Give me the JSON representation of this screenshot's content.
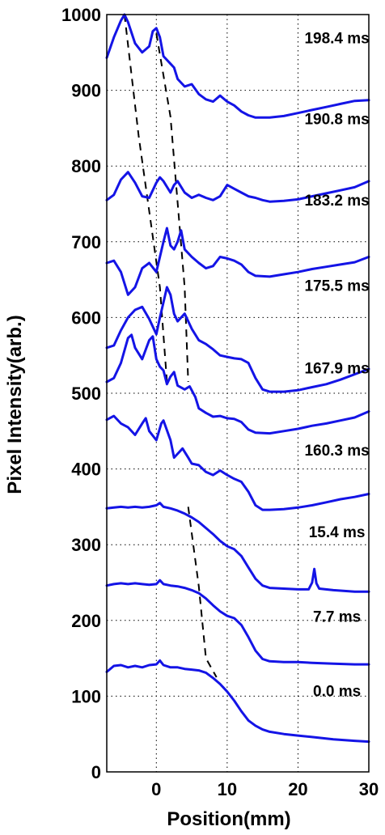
{
  "chart_data": {
    "type": "line",
    "xlabel": "Position(mm)",
    "ylabel": "Pixel Intensity(arb.)",
    "xlim": [
      -7,
      30
    ],
    "ylim": [
      0,
      1000
    ],
    "xticks": [
      0,
      10,
      20,
      30
    ],
    "yticks": [
      0,
      100,
      200,
      300,
      400,
      500,
      600,
      700,
      800,
      900,
      1000
    ],
    "grid": true,
    "line_color": "#1414e6",
    "series": [
      {
        "name": "0.0 ms",
        "label_at": [
          25.5,
          100
        ],
        "values": [
          [
            -7,
            132
          ],
          [
            -6,
            140
          ],
          [
            -5,
            141
          ],
          [
            -4,
            138
          ],
          [
            -3,
            140
          ],
          [
            -2,
            138
          ],
          [
            -1,
            141
          ],
          [
            0,
            142
          ],
          [
            0.5,
            147
          ],
          [
            1,
            141
          ],
          [
            2,
            138
          ],
          [
            3,
            138
          ],
          [
            4,
            136
          ],
          [
            5,
            135
          ],
          [
            6,
            134
          ],
          [
            7,
            131
          ],
          [
            8,
            124
          ],
          [
            9,
            116
          ],
          [
            10,
            106
          ],
          [
            11,
            94
          ],
          [
            12,
            80
          ],
          [
            13,
            68
          ],
          [
            14,
            61
          ],
          [
            15,
            56
          ],
          [
            16,
            53
          ],
          [
            18,
            50
          ],
          [
            20,
            48
          ],
          [
            22,
            46
          ],
          [
            25,
            43
          ],
          [
            28,
            41
          ],
          [
            30,
            40
          ]
        ]
      },
      {
        "name": "7.7 ms",
        "label_at": [
          25.5,
          198
        ],
        "values": [
          [
            -7,
            246
          ],
          [
            -6,
            248
          ],
          [
            -5,
            249
          ],
          [
            -4,
            248
          ],
          [
            -3,
            249
          ],
          [
            -2,
            248
          ],
          [
            -1,
            247
          ],
          [
            0,
            248
          ],
          [
            0.5,
            253
          ],
          [
            1,
            248
          ],
          [
            2,
            246
          ],
          [
            3,
            245
          ],
          [
            4,
            243
          ],
          [
            5,
            240
          ],
          [
            6,
            236
          ],
          [
            7,
            229
          ],
          [
            8,
            220
          ],
          [
            9,
            212
          ],
          [
            10,
            206
          ],
          [
            11,
            203
          ],
          [
            12,
            194
          ],
          [
            13,
            178
          ],
          [
            14,
            160
          ],
          [
            15,
            149
          ],
          [
            16,
            146
          ],
          [
            18,
            145
          ],
          [
            20,
            145
          ],
          [
            22,
            144
          ],
          [
            25,
            143
          ],
          [
            28,
            142
          ],
          [
            30,
            142
          ]
        ]
      },
      {
        "name": "15.4 ms",
        "label_at": [
          25.5,
          310
        ],
        "values": [
          [
            -7,
            348
          ],
          [
            -6,
            349
          ],
          [
            -5,
            350
          ],
          [
            -4,
            349
          ],
          [
            -3,
            350
          ],
          [
            -2,
            349
          ],
          [
            -1,
            350
          ],
          [
            0,
            352
          ],
          [
            0.5,
            355
          ],
          [
            1,
            350
          ],
          [
            2,
            348
          ],
          [
            3,
            345
          ],
          [
            4,
            341
          ],
          [
            5,
            336
          ],
          [
            6,
            330
          ],
          [
            7,
            322
          ],
          [
            8,
            314
          ],
          [
            9,
            305
          ],
          [
            10,
            298
          ],
          [
            11,
            294
          ],
          [
            12,
            285
          ],
          [
            13,
            270
          ],
          [
            14,
            255
          ],
          [
            15,
            246
          ],
          [
            16,
            243
          ],
          [
            18,
            242
          ],
          [
            20,
            241
          ],
          [
            21.5,
            241
          ],
          [
            22,
            250
          ],
          [
            22.3,
            268
          ],
          [
            22.6,
            249
          ],
          [
            23,
            242
          ],
          [
            25,
            240
          ],
          [
            28,
            238
          ],
          [
            30,
            238
          ]
        ]
      },
      {
        "name": "160.3 ms",
        "label_at": [
          25.5,
          418
        ],
        "values": [
          [
            -7,
            465
          ],
          [
            -6,
            470
          ],
          [
            -5,
            460
          ],
          [
            -4,
            455
          ],
          [
            -3,
            445
          ],
          [
            -2,
            460
          ],
          [
            -1.5,
            467
          ],
          [
            -1,
            450
          ],
          [
            0,
            438
          ],
          [
            0.7,
            460
          ],
          [
            1,
            464
          ],
          [
            2,
            438
          ],
          [
            2.5,
            415
          ],
          [
            3,
            420
          ],
          [
            3.7,
            427
          ],
          [
            4.5,
            415
          ],
          [
            5,
            407
          ],
          [
            6,
            405
          ],
          [
            7,
            396
          ],
          [
            8,
            392
          ],
          [
            9,
            398
          ],
          [
            10,
            392
          ],
          [
            11,
            387
          ],
          [
            12,
            383
          ],
          [
            13,
            370
          ],
          [
            14,
            352
          ],
          [
            15,
            346
          ],
          [
            16,
            346
          ],
          [
            18,
            347
          ],
          [
            20,
            349
          ],
          [
            22,
            352
          ],
          [
            24,
            356
          ],
          [
            26,
            360
          ],
          [
            28,
            363
          ],
          [
            30,
            367
          ]
        ]
      },
      {
        "name": "167.9 ms",
        "label_at": [
          25.5,
          526
        ],
        "values": [
          [
            -7,
            515
          ],
          [
            -6,
            520
          ],
          [
            -5,
            540
          ],
          [
            -4,
            573
          ],
          [
            -3.5,
            577
          ],
          [
            -3,
            560
          ],
          [
            -2,
            545
          ],
          [
            -1,
            570
          ],
          [
            -0.5,
            575
          ],
          [
            0,
            545
          ],
          [
            0.5,
            535
          ],
          [
            1,
            530
          ],
          [
            1.5,
            512
          ],
          [
            2,
            522
          ],
          [
            2.5,
            528
          ],
          [
            3,
            510
          ],
          [
            4,
            505
          ],
          [
            4.7,
            509
          ],
          [
            5.5,
            495
          ],
          [
            6,
            480
          ],
          [
            7,
            474
          ],
          [
            8,
            469
          ],
          [
            9,
            470
          ],
          [
            10,
            467
          ],
          [
            11,
            466
          ],
          [
            12,
            462
          ],
          [
            13,
            452
          ],
          [
            14,
            448
          ],
          [
            16,
            447
          ],
          [
            18,
            450
          ],
          [
            20,
            453
          ],
          [
            22,
            457
          ],
          [
            24,
            460
          ],
          [
            26,
            464
          ],
          [
            28,
            468
          ],
          [
            30,
            476
          ]
        ]
      },
      {
        "name": "175.5 ms",
        "label_at": [
          25.5,
          635
        ],
        "values": [
          [
            -7,
            560
          ],
          [
            -6,
            563
          ],
          [
            -5,
            583
          ],
          [
            -4,
            600
          ],
          [
            -3,
            610
          ],
          [
            -2,
            614
          ],
          [
            -1,
            598
          ],
          [
            0,
            578
          ],
          [
            0.5,
            600
          ],
          [
            1,
            620
          ],
          [
            1.5,
            640
          ],
          [
            2,
            630
          ],
          [
            2.5,
            605
          ],
          [
            3,
            595
          ],
          [
            4,
            605
          ],
          [
            5,
            585
          ],
          [
            6,
            570
          ],
          [
            7,
            565
          ],
          [
            8,
            558
          ],
          [
            9,
            550
          ],
          [
            10,
            548
          ],
          [
            11,
            546
          ],
          [
            12,
            545
          ],
          [
            13,
            540
          ],
          [
            14,
            520
          ],
          [
            15,
            505
          ],
          [
            16,
            502
          ],
          [
            18,
            502
          ],
          [
            20,
            504
          ],
          [
            22,
            508
          ],
          [
            24,
            512
          ],
          [
            26,
            518
          ],
          [
            28,
            525
          ],
          [
            30,
            532
          ]
        ]
      },
      {
        "name": "183.2 ms",
        "label_at": [
          25.5,
          748
        ],
        "values": [
          [
            -7,
            672
          ],
          [
            -6,
            675
          ],
          [
            -5,
            660
          ],
          [
            -4,
            630
          ],
          [
            -3,
            640
          ],
          [
            -2,
            665
          ],
          [
            -1,
            672
          ],
          [
            0,
            660
          ],
          [
            0.5,
            680
          ],
          [
            1,
            700
          ],
          [
            1.5,
            718
          ],
          [
            2,
            695
          ],
          [
            2.5,
            690
          ],
          [
            3,
            700
          ],
          [
            3.5,
            715
          ],
          [
            4,
            690
          ],
          [
            5,
            680
          ],
          [
            6,
            672
          ],
          [
            7,
            665
          ],
          [
            8,
            668
          ],
          [
            9,
            680
          ],
          [
            10,
            678
          ],
          [
            11,
            675
          ],
          [
            12,
            670
          ],
          [
            13,
            660
          ],
          [
            14,
            655
          ],
          [
            16,
            654
          ],
          [
            18,
            657
          ],
          [
            20,
            660
          ],
          [
            22,
            664
          ],
          [
            24,
            667
          ],
          [
            26,
            670
          ],
          [
            28,
            673
          ],
          [
            30,
            680
          ]
        ]
      },
      {
        "name": "190.8 ms",
        "label_at": [
          25.5,
          855
        ],
        "values": [
          [
            -7,
            755
          ],
          [
            -6,
            762
          ],
          [
            -5,
            782
          ],
          [
            -4,
            792
          ],
          [
            -3,
            778
          ],
          [
            -2,
            760
          ],
          [
            -1,
            758
          ],
          [
            0,
            778
          ],
          [
            0.5,
            785
          ],
          [
            1,
            780
          ],
          [
            2,
            765
          ],
          [
            2.5,
            775
          ],
          [
            3,
            780
          ],
          [
            4,
            765
          ],
          [
            5,
            758
          ],
          [
            6,
            762
          ],
          [
            7,
            758
          ],
          [
            8,
            755
          ],
          [
            9,
            760
          ],
          [
            10,
            775
          ],
          [
            11,
            770
          ],
          [
            12,
            765
          ],
          [
            13,
            760
          ],
          [
            14,
            758
          ],
          [
            15,
            755
          ],
          [
            16,
            753
          ],
          [
            18,
            754
          ],
          [
            20,
            756
          ],
          [
            22,
            760
          ],
          [
            24,
            764
          ],
          [
            26,
            768
          ],
          [
            28,
            772
          ],
          [
            30,
            780
          ]
        ]
      },
      {
        "name": "198.4 ms",
        "label_at": [
          25.5,
          962
        ],
        "values": [
          [
            -7,
            943
          ],
          [
            -6,
            970
          ],
          [
            -5,
            992
          ],
          [
            -4.5,
            1000
          ],
          [
            -4,
            990
          ],
          [
            -3,
            962
          ],
          [
            -2,
            950
          ],
          [
            -1,
            958
          ],
          [
            -0.5,
            978
          ],
          [
            0,
            982
          ],
          [
            0.5,
            970
          ],
          [
            1,
            945
          ],
          [
            2,
            935
          ],
          [
            2.5,
            930
          ],
          [
            3,
            915
          ],
          [
            4,
            905
          ],
          [
            5,
            908
          ],
          [
            6,
            895
          ],
          [
            7,
            888
          ],
          [
            8,
            885
          ],
          [
            9,
            893
          ],
          [
            10,
            885
          ],
          [
            11,
            880
          ],
          [
            12,
            872
          ],
          [
            13,
            867
          ],
          [
            14,
            864
          ],
          [
            16,
            864
          ],
          [
            18,
            866
          ],
          [
            20,
            870
          ],
          [
            22,
            874
          ],
          [
            24,
            878
          ],
          [
            26,
            882
          ],
          [
            28,
            886
          ],
          [
            30,
            887
          ]
        ]
      }
    ],
    "dashed_lines": [
      [
        [
          -4.5,
          1000
        ],
        [
          -2.5,
          840
        ],
        [
          0.5,
          640
        ],
        [
          1.5,
          515
        ]
      ],
      [
        [
          0,
          975
        ],
        [
          2,
          865
        ],
        [
          4,
          640
        ],
        [
          4.5,
          515
        ]
      ],
      [
        [
          4.5,
          350
        ],
        [
          6,
          245
        ],
        [
          7,
          150
        ],
        [
          8.5,
          125
        ]
      ]
    ]
  }
}
